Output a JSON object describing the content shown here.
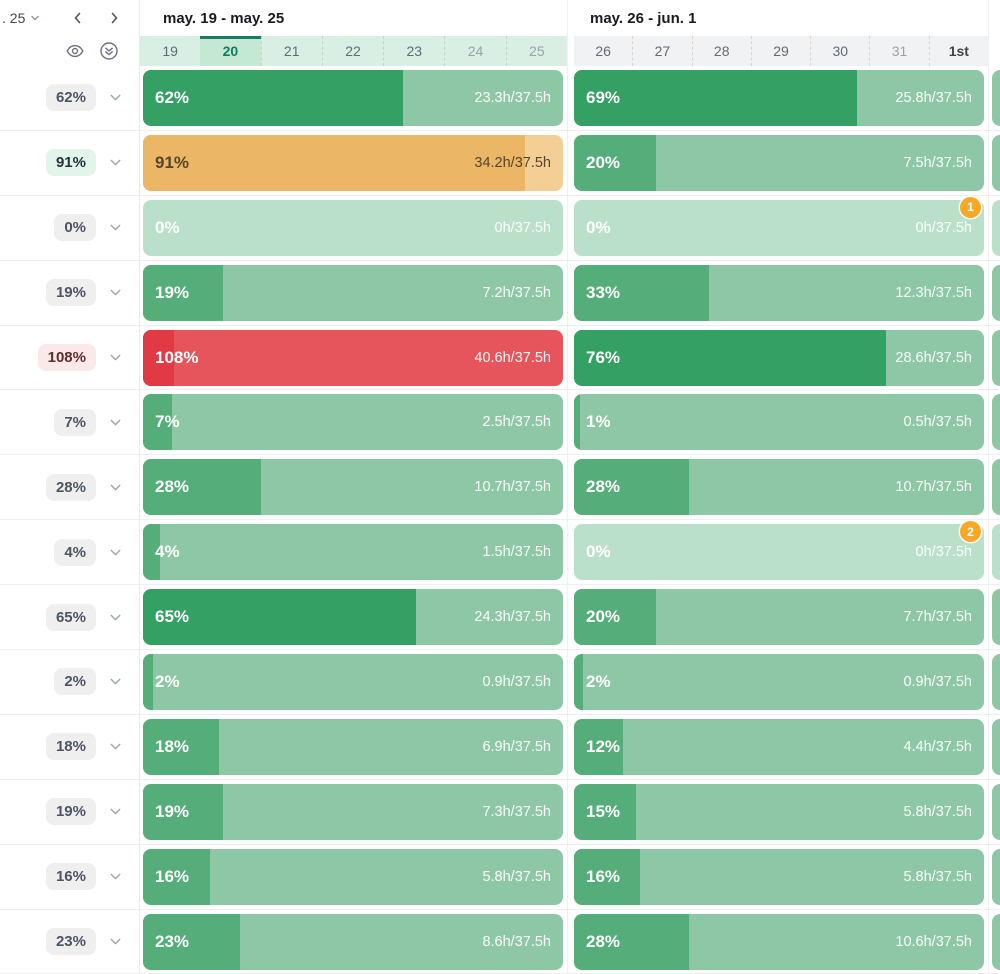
{
  "colors": {
    "green_dark": "#34a064",
    "green_mid": "#55ae7a",
    "green_remainder": "#8ec7a6",
    "green_empty": "#bbe0ca",
    "orange_fill": "#ebb766",
    "orange_remainder": "#f3cf96",
    "red_over": "#e23a44",
    "red_main": "#e6545c",
    "notification_orange": "#f7a826",
    "selected_day_teal": "#1b7b61",
    "week1_strip_mint": "#d9efe4",
    "week2_strip_gray": "#f1f2f3"
  },
  "header": {
    "period_label": ". 25",
    "weeks": [
      {
        "title": "may. 19 - may. 25",
        "days": [
          {
            "label": "19",
            "state": ""
          },
          {
            "label": "20",
            "state": "selected"
          },
          {
            "label": "21",
            "state": ""
          },
          {
            "label": "22",
            "state": ""
          },
          {
            "label": "23",
            "state": ""
          },
          {
            "label": "24",
            "state": "muted"
          },
          {
            "label": "25",
            "state": "muted"
          }
        ]
      },
      {
        "title": "may. 26 - jun. 1",
        "days": [
          {
            "label": "26",
            "state": ""
          },
          {
            "label": "27",
            "state": ""
          },
          {
            "label": "28",
            "state": ""
          },
          {
            "label": "29",
            "state": ""
          },
          {
            "label": "30",
            "state": ""
          },
          {
            "label": "31",
            "state": "muted"
          },
          {
            "label": "1st",
            "state": "strong"
          }
        ]
      }
    ]
  },
  "rows": [
    {
      "badge": "62%",
      "badge_variant": "gray",
      "week1": {
        "percent": "62%",
        "hours": "23.3h/37.5h",
        "variant": "dark",
        "fill": 62
      },
      "week2": {
        "percent": "69%",
        "hours": "25.8h/37.5h",
        "variant": "dark",
        "fill": 69
      },
      "next_week_edge": "mid"
    },
    {
      "badge": "91%",
      "badge_variant": "green",
      "week1": {
        "percent": "91%",
        "hours": "34.2h/37.5h",
        "variant": "orange",
        "fill": 91
      },
      "week2": {
        "percent": "20%",
        "hours": "7.5h/37.5h",
        "variant": "mid",
        "fill": 20
      },
      "next_week_edge": "mid"
    },
    {
      "badge": "0%",
      "badge_variant": "gray",
      "week1": {
        "percent": "0%",
        "hours": "0h/37.5h",
        "variant": "empty",
        "fill": 0
      },
      "week2": {
        "percent": "0%",
        "hours": "0h/37.5h",
        "variant": "empty",
        "fill": 0,
        "notif": "1"
      },
      "next_week_edge": "empty"
    },
    {
      "badge": "19%",
      "badge_variant": "gray",
      "week1": {
        "percent": "19%",
        "hours": "7.2h/37.5h",
        "variant": "mid",
        "fill": 19
      },
      "week2": {
        "percent": "33%",
        "hours": "12.3h/37.5h",
        "variant": "mid",
        "fill": 33
      },
      "next_week_edge": "mid"
    },
    {
      "badge": "108%",
      "badge_variant": "red",
      "week1": {
        "percent": "108%",
        "hours": "40.6h/37.5h",
        "variant": "red",
        "fill": 7.4
      },
      "week2": {
        "percent": "76%",
        "hours": "28.6h/37.5h",
        "variant": "dark",
        "fill": 76
      },
      "next_week_edge": "mid"
    },
    {
      "badge": "7%",
      "badge_variant": "gray",
      "week1": {
        "percent": "7%",
        "hours": "2.5h/37.5h",
        "variant": "mid",
        "fill": 7
      },
      "week2": {
        "percent": "1%",
        "hours": "0.5h/37.5h",
        "variant": "mid",
        "fill": 1.5
      },
      "next_week_edge": "mid"
    },
    {
      "badge": "28%",
      "badge_variant": "gray",
      "week1": {
        "percent": "28%",
        "hours": "10.7h/37.5h",
        "variant": "mid",
        "fill": 28
      },
      "week2": {
        "percent": "28%",
        "hours": "10.7h/37.5h",
        "variant": "mid",
        "fill": 28
      },
      "next_week_edge": "mid"
    },
    {
      "badge": "4%",
      "badge_variant": "gray",
      "week1": {
        "percent": "4%",
        "hours": "1.5h/37.5h",
        "variant": "mid",
        "fill": 4
      },
      "week2": {
        "percent": "0%",
        "hours": "0h/37.5h",
        "variant": "empty",
        "fill": 0,
        "notif": "2"
      },
      "next_week_edge": "empty"
    },
    {
      "badge": "65%",
      "badge_variant": "gray",
      "week1": {
        "percent": "65%",
        "hours": "24.3h/37.5h",
        "variant": "dark",
        "fill": 65
      },
      "week2": {
        "percent": "20%",
        "hours": "7.7h/37.5h",
        "variant": "mid",
        "fill": 20
      },
      "next_week_edge": "mid"
    },
    {
      "badge": "2%",
      "badge_variant": "gray",
      "week1": {
        "percent": "2%",
        "hours": "0.9h/37.5h",
        "variant": "mid",
        "fill": 2.3
      },
      "week2": {
        "percent": "2%",
        "hours": "0.9h/37.5h",
        "variant": "mid",
        "fill": 2.3
      },
      "next_week_edge": "mid"
    },
    {
      "badge": "18%",
      "badge_variant": "gray",
      "week1": {
        "percent": "18%",
        "hours": "6.9h/37.5h",
        "variant": "mid",
        "fill": 18
      },
      "week2": {
        "percent": "12%",
        "hours": "4.4h/37.5h",
        "variant": "mid",
        "fill": 12
      },
      "next_week_edge": "mid"
    },
    {
      "badge": "19%",
      "badge_variant": "gray",
      "week1": {
        "percent": "19%",
        "hours": "7.3h/37.5h",
        "variant": "mid",
        "fill": 19
      },
      "week2": {
        "percent": "15%",
        "hours": "5.8h/37.5h",
        "variant": "mid",
        "fill": 15
      },
      "next_week_edge": "mid"
    },
    {
      "badge": "16%",
      "badge_variant": "gray",
      "week1": {
        "percent": "16%",
        "hours": "5.8h/37.5h",
        "variant": "mid",
        "fill": 16
      },
      "week2": {
        "percent": "16%",
        "hours": "5.8h/37.5h",
        "variant": "mid",
        "fill": 16
      },
      "next_week_edge": "mid"
    },
    {
      "badge": "23%",
      "badge_variant": "gray",
      "week1": {
        "percent": "23%",
        "hours": "8.6h/37.5h",
        "variant": "mid",
        "fill": 23
      },
      "week2": {
        "percent": "28%",
        "hours": "10.6h/37.5h",
        "variant": "mid",
        "fill": 28
      },
      "next_week_edge": "mid"
    }
  ]
}
